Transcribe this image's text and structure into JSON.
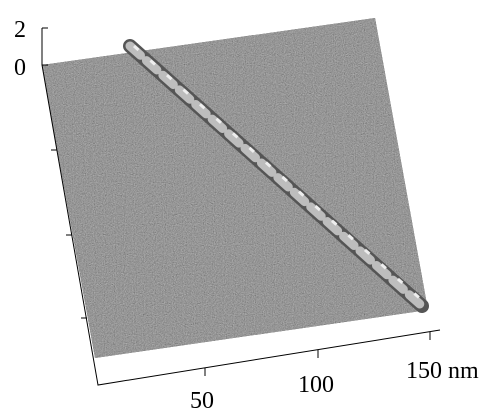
{
  "z_axis": {
    "ticks": [
      "2",
      "0"
    ]
  },
  "x_axis": {
    "ticks": [
      "50",
      "100",
      "150 nm"
    ]
  }
}
